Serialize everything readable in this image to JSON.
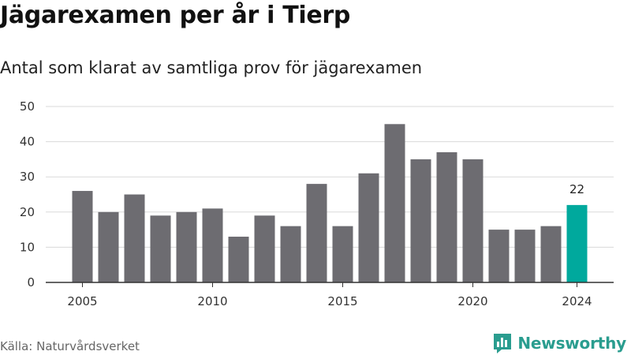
{
  "title": "Jägarexamen per år i Tierp",
  "subtitle": "Antal som klarat av samtliga prov för jägarexamen",
  "source": "Källa: Naturvårdsverket",
  "brand": "Newsworthy",
  "colors": {
    "bar": "#6d6c71",
    "highlight": "#00a99d",
    "grid": "#d9d9d9",
    "axis": "#333333",
    "brand": "#2a9d8f"
  },
  "chart_data": {
    "type": "bar",
    "title": "Jägarexamen per år i Tierp",
    "subtitle": "Antal som klarat av samtliga prov för jägarexamen",
    "xlabel": "",
    "ylabel": "",
    "categories": [
      2005,
      2006,
      2007,
      2008,
      2009,
      2010,
      2011,
      2012,
      2013,
      2014,
      2015,
      2016,
      2017,
      2018,
      2019,
      2020,
      2021,
      2022,
      2023,
      2024
    ],
    "values": [
      26,
      20,
      25,
      19,
      20,
      21,
      13,
      19,
      16,
      28,
      16,
      31,
      45,
      35,
      37,
      35,
      15,
      15,
      16,
      22
    ],
    "highlight_category": 2024,
    "data_labels": [
      {
        "category": 2024,
        "text": "22"
      }
    ],
    "ylim": [
      0,
      50
    ],
    "yticks": [
      0,
      10,
      20,
      30,
      40,
      50
    ],
    "xticks": [
      2005,
      2010,
      2015,
      2020,
      2024
    ],
    "grid": true,
    "legend": "none"
  }
}
